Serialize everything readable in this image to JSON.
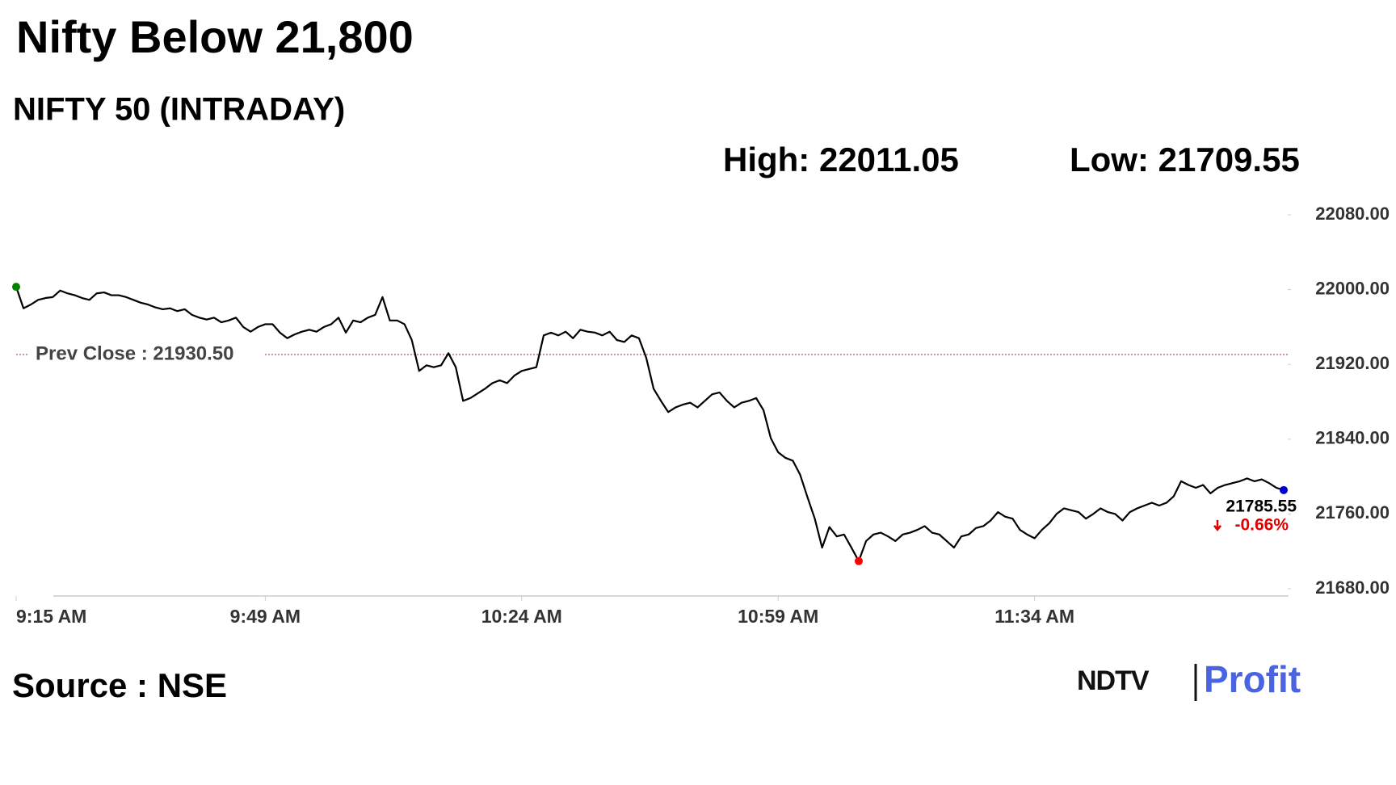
{
  "chart_data": {
    "type": "line",
    "title": "Nifty Below 21,800",
    "subtitle": "NIFTY 50 (INTRADAY)",
    "high_label": "High: 22011.05",
    "low_label": "Low: 21709.55",
    "prev_close": 21930.5,
    "prev_close_label": "Prev Close : 21930.50",
    "prev_close_color": "#a52a2a",
    "change": "-0.66%",
    "change_color": "#e00000",
    "start_color": "#008000",
    "low_color": "#ff0000",
    "end_color": "#0000cc",
    "low_index": 115,
    "source": "Source : NSE",
    "brand": [
      "NDTV",
      "Profit"
    ],
    "categories": [
      "9:15 AM",
      null,
      null,
      null,
      null,
      null,
      null,
      null,
      null,
      null,
      null,
      null,
      null,
      null,
      null,
      null,
      null,
      null,
      null,
      null,
      null,
      null,
      null,
      null,
      null,
      null,
      null,
      null,
      null,
      null,
      null,
      null,
      null,
      null,
      "9:49 AM",
      null,
      null,
      null,
      null,
      null,
      null,
      null,
      null,
      null,
      null,
      null,
      null,
      null,
      null,
      null,
      null,
      null,
      null,
      null,
      null,
      null,
      null,
      null,
      null,
      null,
      null,
      null,
      null,
      null,
      null,
      null,
      null,
      null,
      null,
      "10:24 AM",
      null,
      null,
      null,
      null,
      null,
      null,
      null,
      null,
      null,
      null,
      null,
      null,
      null,
      null,
      null,
      null,
      null,
      null,
      null,
      null,
      null,
      null,
      null,
      null,
      null,
      null,
      null,
      null,
      null,
      null,
      null,
      null,
      null,
      null,
      "10:59 AM",
      null,
      null,
      null,
      null,
      null,
      null,
      null,
      null,
      null,
      null,
      null,
      null,
      null,
      null,
      null,
      null,
      null,
      null,
      null,
      null,
      null,
      null,
      null,
      null,
      null,
      null,
      null,
      null,
      null,
      null,
      null,
      null,
      null,
      null,
      "11:34 AM",
      null,
      null,
      null,
      null,
      null,
      null,
      null,
      null,
      null,
      null,
      null,
      null,
      null,
      null,
      null,
      null,
      null,
      null,
      null,
      null,
      null,
      null,
      null,
      null,
      null,
      null,
      null,
      null,
      null,
      null,
      null,
      null,
      null,
      null
    ],
    "series": [
      {
        "name": "NIFTY 50",
        "color": "#000000",
        "values": [
          22003,
          21980,
          21984,
          21989,
          21991,
          21992,
          21999,
          21996,
          21994,
          21991,
          21989,
          21996,
          21997,
          21994,
          21994,
          21992,
          21989,
          21986,
          21984,
          21981,
          21979,
          21980,
          21977,
          21979,
          21973,
          21970,
          21968,
          21970,
          21965,
          21967,
          21970,
          21960,
          21955,
          21960,
          21963,
          21963,
          21954,
          21948,
          21952,
          21955,
          21957,
          21955,
          21960,
          21963,
          21970,
          21954,
          21967,
          21965,
          21970,
          21973,
          21992,
          21967,
          21967,
          21963,
          21946,
          21913,
          21919,
          21917,
          21919,
          21932,
          21917,
          21881,
          21884,
          21889,
          21894,
          21900,
          21903,
          21900,
          21908,
          21913,
          21915,
          21917,
          21951,
          21954,
          21951,
          21955,
          21948,
          21957,
          21955,
          21954,
          21951,
          21955,
          21946,
          21944,
          21951,
          21948,
          21927,
          21894,
          21881,
          21869,
          21874,
          21877,
          21879,
          21874,
          21881,
          21888,
          21890,
          21881,
          21874,
          21879,
          21881,
          21884,
          21871,
          21841,
          21826,
          21820,
          21817,
          21802,
          21778,
          21755,
          21724,
          21746,
          21736,
          21738,
          21724,
          21709.55,
          21731,
          21738,
          21740,
          21736,
          21731,
          21738,
          21740,
          21743,
          21747,
          21740,
          21738,
          21731,
          21724,
          21736,
          21738,
          21745,
          21747,
          21753,
          21762,
          21757,
          21755,
          21743,
          21738,
          21734,
          21743,
          21750,
          21760,
          21766,
          21764,
          21762,
          21755,
          21760,
          21766,
          21762,
          21760,
          21753,
          21762,
          21766,
          21769,
          21772,
          21769,
          21772,
          21779,
          21795,
          21791,
          21788,
          21791,
          21782,
          21788,
          21791,
          21793,
          21795,
          21798,
          21795,
          21797,
          21793,
          21788,
          21785.55
        ]
      }
    ],
    "ylim": [
      21680,
      22080
    ],
    "yticks": [
      {
        "value": 21680,
        "label": "21680.00"
      },
      {
        "value": 21760,
        "label": "21760.00"
      },
      {
        "value": 21840,
        "label": "21840.00"
      },
      {
        "value": 21920,
        "label": "21920.00"
      },
      {
        "value": 22000,
        "label": "22000.00"
      },
      {
        "value": 22080,
        "label": "22080.00"
      }
    ],
    "grid": false
  }
}
